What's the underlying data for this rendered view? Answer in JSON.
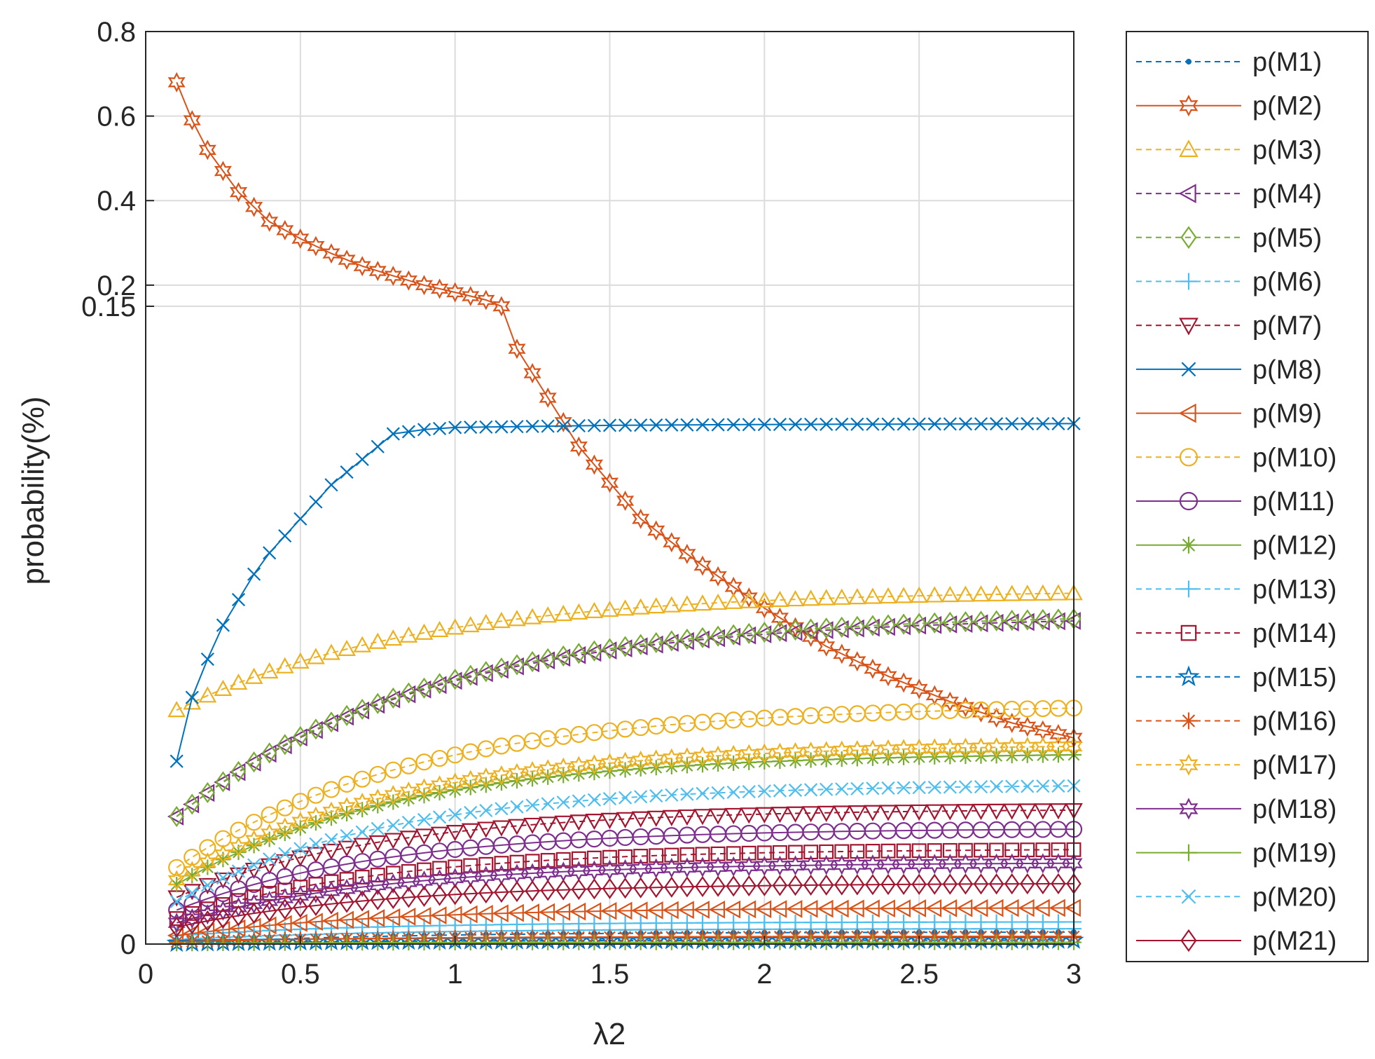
{
  "chart_data": {
    "type": "line",
    "title": "",
    "xlabel": "λ2",
    "ylabel": "probability(%)",
    "xlim": [
      0,
      3
    ],
    "x_ticks": [
      "0",
      "0.5",
      "1",
      "1.5",
      "2",
      "2.5",
      "3"
    ],
    "y_ticks": [
      {
        "label": "0",
        "value": 0
      },
      {
        "label": "0.15",
        "value": 0.15
      },
      {
        "label": "0.2",
        "value": 0.2
      },
      {
        "label": "0.4",
        "value": 0.4
      },
      {
        "label": "0.6",
        "value": 0.6
      },
      {
        "label": "0.8",
        "value": 0.8
      }
    ],
    "y_axis_note": "piecewise scale: 0 to 0.15 occupies the lower region, 0.15 to 0.8 the upper region",
    "grid": true,
    "legend_position": "outside-right",
    "x_start": 0.1,
    "x_end": 3,
    "x_step": 0.05,
    "series": [
      {
        "name": "p(M1)",
        "color": "#0072BD",
        "line": "dashed",
        "marker": "point",
        "start": 0.0001,
        "end": 0.0028,
        "rate": 1.5
      },
      {
        "name": "p(M2)",
        "color": "#D95319",
        "line": "solid",
        "marker": "hexagram",
        "pts": [
          [
            0.1,
            0.68
          ],
          [
            0.15,
            0.59
          ],
          [
            0.2,
            0.52
          ],
          [
            0.3,
            0.42
          ],
          [
            0.4,
            0.35
          ],
          [
            0.5,
            0.31
          ],
          [
            0.6,
            0.275
          ],
          [
            0.7,
            0.245
          ],
          [
            0.8,
            0.222
          ],
          [
            0.9,
            0.2
          ],
          [
            1.0,
            0.183
          ],
          [
            1.1,
            0.165
          ],
          [
            1.15,
            0.15
          ],
          [
            1.2,
            0.14
          ],
          [
            1.4,
            0.117
          ],
          [
            1.6,
            0.1
          ],
          [
            1.8,
            0.089
          ],
          [
            2.0,
            0.079
          ],
          [
            2.2,
            0.07
          ],
          [
            2.4,
            0.063
          ],
          [
            2.6,
            0.057
          ],
          [
            2.8,
            0.052
          ],
          [
            3.0,
            0.0485
          ]
        ]
      },
      {
        "name": "p(M3)",
        "color": "#EDB120",
        "line": "dashed",
        "marker": "triangle",
        "start": 0.055,
        "end": 0.0825,
        "rate": 1.3
      },
      {
        "name": "p(M4)",
        "color": "#7E2F8E",
        "line": "dashed",
        "marker": "tri-left",
        "start": 0.03,
        "end": 0.076,
        "rate": 1.25
      },
      {
        "name": "p(M5)",
        "color": "#77AC30",
        "line": "dashed",
        "marker": "diamond",
        "start": 0.03,
        "end": 0.0765,
        "rate": 1.25
      },
      {
        "name": "p(M6)",
        "color": "#4DBEEE",
        "line": "dashed",
        "marker": "plus",
        "start": 0.002,
        "end": 0.0052,
        "rate": 1.5
      },
      {
        "name": "p(M7)",
        "color": "#A2142F",
        "line": "dashed",
        "marker": "tri-down",
        "start": 0.011,
        "end": 0.0315,
        "rate": 1.5
      },
      {
        "name": "p(M8)",
        "color": "#0072BD",
        "line": "solid",
        "marker": "x",
        "pts": [
          [
            0.1,
            0.043
          ],
          [
            0.15,
            0.058
          ],
          [
            0.2,
            0.067
          ],
          [
            0.25,
            0.075
          ],
          [
            0.3,
            0.081
          ],
          [
            0.35,
            0.087
          ],
          [
            0.4,
            0.092
          ],
          [
            0.45,
            0.096
          ],
          [
            0.5,
            0.1
          ],
          [
            0.55,
            0.104
          ],
          [
            0.6,
            0.108
          ],
          [
            0.65,
            0.111
          ],
          [
            0.7,
            0.114
          ],
          [
            0.75,
            0.117
          ],
          [
            0.8,
            0.12
          ],
          [
            0.9,
            0.121
          ],
          [
            1.0,
            0.1215
          ],
          [
            1.5,
            0.122
          ],
          [
            2.0,
            0.1222
          ],
          [
            2.5,
            0.1223
          ],
          [
            3.0,
            0.1224
          ]
        ]
      },
      {
        "name": "p(M9)",
        "color": "#D95319",
        "line": "solid",
        "marker": "tri-left",
        "start": 0.002,
        "end": 0.0085,
        "rate": 1.5
      },
      {
        "name": "p(M10)",
        "color": "#EDB120",
        "line": "dashed",
        "marker": "circle",
        "start": 0.018,
        "end": 0.0555,
        "rate": 1.3
      },
      {
        "name": "p(M11)",
        "color": "#7E2F8E",
        "line": "solid",
        "marker": "circle",
        "start": 0.008,
        "end": 0.027,
        "rate": 1.5
      },
      {
        "name": "p(M12)",
        "color": "#77AC30",
        "line": "solid",
        "marker": "asterisk",
        "start": 0.014,
        "end": 0.0445,
        "rate": 1.4
      },
      {
        "name": "p(M13)",
        "color": "#4DBEEE",
        "line": "dashed",
        "marker": "plus",
        "start": 0.001,
        "end": 0.0036,
        "rate": 1.5
      },
      {
        "name": "p(M14)",
        "color": "#A2142F",
        "line": "dashed",
        "marker": "square",
        "start": 0.006,
        "end": 0.0222,
        "rate": 1.5
      },
      {
        "name": "p(M15)",
        "color": "#0072BD",
        "line": "dashed",
        "marker": "pentagram",
        "start": 0.0002,
        "end": 0.0009,
        "rate": 1.5
      },
      {
        "name": "p(M16)",
        "color": "#D95319",
        "line": "dashed",
        "marker": "asterisk",
        "start": 0.0005,
        "end": 0.0018,
        "rate": 1.5
      },
      {
        "name": "p(M17)",
        "color": "#EDB120",
        "line": "dashed",
        "marker": "hexagram",
        "start": 0.015,
        "end": 0.0465,
        "rate": 1.4
      },
      {
        "name": "p(M18)",
        "color": "#7E2F8E",
        "line": "solid",
        "marker": "hexagram",
        "start": 0.005,
        "end": 0.019,
        "rate": 1.5
      },
      {
        "name": "p(M19)",
        "color": "#77AC30",
        "line": "solid",
        "marker": "plus",
        "start": 0.0001,
        "end": 0.0004,
        "rate": 1.5
      },
      {
        "name": "p(M20)",
        "color": "#4DBEEE",
        "line": "dashed",
        "marker": "x",
        "start": 0.01,
        "end": 0.0372,
        "rate": 1.5
      },
      {
        "name": "p(M21)",
        "color": "#A2142F",
        "line": "solid",
        "marker": "diamond",
        "start": 0.004,
        "end": 0.0142,
        "rate": 1.5
      }
    ]
  }
}
